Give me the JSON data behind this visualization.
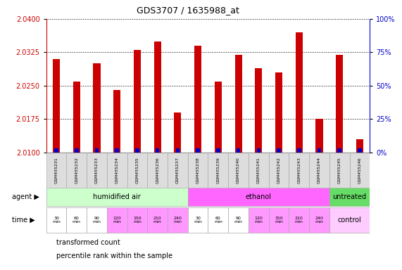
{
  "title": "GDS3707 / 1635988_at",
  "samples": [
    "GSM455231",
    "GSM455232",
    "GSM455233",
    "GSM455234",
    "GSM455235",
    "GSM455236",
    "GSM455237",
    "GSM455238",
    "GSM455239",
    "GSM455240",
    "GSM455241",
    "GSM455242",
    "GSM455243",
    "GSM455244",
    "GSM455245",
    "GSM455246"
  ],
  "transformed_count": [
    2.031,
    2.026,
    2.03,
    2.024,
    2.033,
    2.035,
    2.019,
    2.034,
    2.026,
    2.032,
    2.029,
    2.028,
    2.037,
    2.0175,
    2.032,
    2.013
  ],
  "percentile_rank": [
    3,
    3,
    3,
    3,
    3,
    3,
    3,
    3,
    3,
    3,
    3,
    3,
    3,
    3,
    3,
    3
  ],
  "ylim_left": [
    2.01,
    2.04
  ],
  "ylim_right": [
    0,
    100
  ],
  "yticks_left": [
    2.01,
    2.0175,
    2.025,
    2.0325,
    2.04
  ],
  "yticks_right": [
    0,
    25,
    50,
    75,
    100
  ],
  "ytick_labels_right": [
    "0%",
    "25%",
    "50%",
    "75%",
    "100%"
  ],
  "bar_color": "#cc0000",
  "percentile_color": "#0000cc",
  "background_color": "#ffffff",
  "agent_groups": [
    {
      "label": "humidified air",
      "start": 0,
      "end": 7,
      "color": "#ccffcc"
    },
    {
      "label": "ethanol",
      "start": 7,
      "end": 14,
      "color": "#ff66ff"
    },
    {
      "label": "untreated",
      "start": 14,
      "end": 16,
      "color": "#66dd66"
    }
  ],
  "time_labels": [
    "30\nmin",
    "60\nmin",
    "90\nmin",
    "120\nmin",
    "150\nmin",
    "210\nmin",
    "240\nmin",
    "30\nmin",
    "60\nmin",
    "90\nmin",
    "120\nmin",
    "150\nmin",
    "210\nmin",
    "240\nmin"
  ],
  "time_colors_white": [
    0,
    1,
    2,
    7,
    8,
    9
  ],
  "time_colors_pink": [
    3,
    4,
    5,
    6,
    10,
    11,
    12,
    13
  ],
  "time_white": "#ffffff",
  "time_pink": "#ff99ff",
  "control_label": "control",
  "control_color": "#ffccff",
  "dotted_grid_color": "#000000",
  "axis_color_left": "#cc0000",
  "axis_color_right": "#0000cc",
  "sample_cell_color": "#dddddd",
  "cell_border_color": "#aaaaaa",
  "legend_items": [
    {
      "color": "#cc0000",
      "label": "transformed count"
    },
    {
      "color": "#0000cc",
      "label": "percentile rank within the sample"
    }
  ]
}
